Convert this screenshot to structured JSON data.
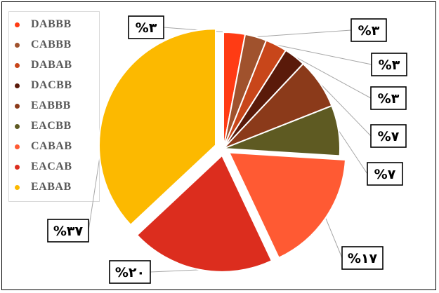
{
  "chart_data": {
    "type": "pie",
    "title": "",
    "legend_position": "top-left",
    "slices": [
      {
        "name": "DABBB",
        "value": 3,
        "color": "#ff3b14",
        "label": "%۳"
      },
      {
        "name": "CABBB",
        "value": 3,
        "color": "#a0522d",
        "label": "%۳"
      },
      {
        "name": "DABAB",
        "value": 3,
        "color": "#c8461a",
        "label": "%۳"
      },
      {
        "name": "DACBB",
        "value": 3,
        "color": "#5a1a0a",
        "label": "%۳"
      },
      {
        "name": "EABBB",
        "value": 7,
        "color": "#8b3a1a",
        "label": "%۷"
      },
      {
        "name": "EACBB",
        "value": 7,
        "color": "#5e5a22",
        "label": "%۷"
      },
      {
        "name": "CABAB",
        "value": 17,
        "color": "#ff5a33",
        "label": "%۱۷"
      },
      {
        "name": "EACAB",
        "value": 20,
        "color": "#dc2d1e",
        "label": "%۲۰"
      },
      {
        "name": "EABAB",
        "value": 37,
        "color": "#fcb900",
        "label": "%۳۷"
      }
    ]
  }
}
